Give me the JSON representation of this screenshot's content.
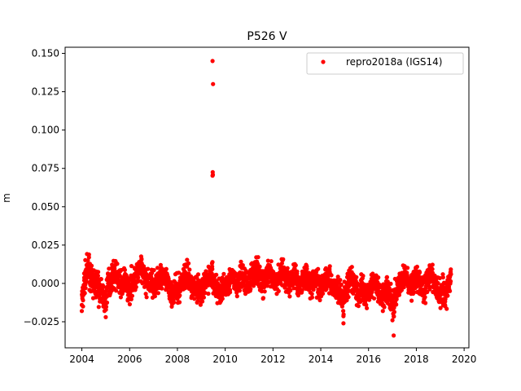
{
  "chart_data": {
    "type": "scatter",
    "title": "P526 V",
    "xlabel": "",
    "ylabel": "m",
    "xlim": [
      2003.3,
      2020.2
    ],
    "ylim": [
      -0.042,
      0.154
    ],
    "x_ticks": [
      2004,
      2006,
      2008,
      2010,
      2012,
      2014,
      2016,
      2018,
      2020
    ],
    "x_tick_labels": [
      "2004",
      "2006",
      "2008",
      "2010",
      "2012",
      "2014",
      "2016",
      "2018",
      "2020"
    ],
    "y_ticks": [
      -0.025,
      0.0,
      0.025,
      0.05,
      0.075,
      0.1,
      0.125,
      0.15
    ],
    "y_tick_labels": [
      "−0.025",
      "0.000",
      "0.025",
      "0.050",
      "0.075",
      "0.100",
      "0.125",
      "0.150"
    ],
    "grid": false,
    "legend_position": "top-right",
    "series": [
      {
        "name": "repro2018a (IGS14)",
        "color": "#ff0000",
        "marker": "circle",
        "points": [
          [
            2004.0,
            -0.018
          ],
          [
            2004.05,
            -0.015
          ],
          [
            2004.1,
            0.002
          ],
          [
            2004.15,
            0.008
          ],
          [
            2004.2,
            0.012
          ],
          [
            2004.25,
            0.015
          ],
          [
            2004.3,
            0.017
          ],
          [
            2004.35,
            0.01
          ],
          [
            2004.4,
            0.003
          ],
          [
            2004.45,
            -0.002
          ],
          [
            2004.5,
            0.005
          ],
          [
            2004.55,
            -0.005
          ],
          [
            2004.6,
            0.0
          ],
          [
            2004.65,
            0.004
          ],
          [
            2004.7,
            -0.008
          ],
          [
            2004.75,
            -0.01
          ],
          [
            2004.8,
            -0.004
          ],
          [
            2004.85,
            -0.012
          ],
          [
            2004.9,
            -0.015
          ],
          [
            2004.95,
            -0.018
          ],
          [
            2005.0,
            -0.022
          ],
          [
            2005.05,
            -0.008
          ],
          [
            2005.1,
            0.0
          ],
          [
            2005.2,
            0.004
          ],
          [
            2005.3,
            0.008
          ],
          [
            2005.4,
            0.012
          ],
          [
            2005.5,
            0.006
          ],
          [
            2005.6,
            0.0
          ],
          [
            2005.7,
            -0.002
          ],
          [
            2005.8,
            0.003
          ],
          [
            2005.9,
            -0.005
          ],
          [
            2006.0,
            -0.008
          ],
          [
            2006.1,
            0.002
          ],
          [
            2006.2,
            0.006
          ],
          [
            2006.3,
            0.01
          ],
          [
            2006.4,
            0.014
          ],
          [
            2006.5,
            0.016
          ],
          [
            2006.6,
            0.008
          ],
          [
            2006.7,
            0.003
          ],
          [
            2006.8,
            -0.002
          ],
          [
            2006.9,
            0.004
          ],
          [
            2007.0,
            0.0
          ],
          [
            2007.1,
            -0.004
          ],
          [
            2007.2,
            0.006
          ],
          [
            2007.3,
            0.012
          ],
          [
            2007.4,
            0.008
          ],
          [
            2007.5,
            0.002
          ],
          [
            2007.6,
            -0.003
          ],
          [
            2007.7,
            -0.008
          ],
          [
            2007.8,
            -0.012
          ],
          [
            2007.9,
            -0.006
          ],
          [
            2008.0,
            -0.01
          ],
          [
            2008.1,
            -0.004
          ],
          [
            2008.2,
            0.002
          ],
          [
            2008.3,
            0.008
          ],
          [
            2008.4,
            0.011
          ],
          [
            2008.5,
            0.004
          ],
          [
            2008.6,
            -0.002
          ],
          [
            2008.7,
            -0.006
          ],
          [
            2008.8,
            0.0
          ],
          [
            2008.9,
            -0.008
          ],
          [
            2009.0,
            -0.012
          ],
          [
            2009.1,
            -0.004
          ],
          [
            2009.2,
            0.003
          ],
          [
            2009.3,
            0.006
          ],
          [
            2009.4,
            0.01
          ],
          [
            2009.47,
            0.145
          ],
          [
            2009.49,
            0.13
          ],
          [
            2009.55,
            0.002
          ],
          [
            2009.6,
            -0.004
          ],
          [
            2009.7,
            -0.008
          ],
          [
            2009.8,
            -0.01
          ],
          [
            2009.9,
            -0.006
          ],
          [
            2010.0,
            -0.004
          ],
          [
            2010.1,
            0.0
          ],
          [
            2010.2,
            0.004
          ],
          [
            2010.3,
            0.008
          ],
          [
            2010.4,
            0.002
          ],
          [
            2010.5,
            -0.003
          ],
          [
            2010.6,
            0.006
          ],
          [
            2010.7,
            0.01
          ],
          [
            2010.8,
            0.004
          ],
          [
            2010.9,
            -0.002
          ],
          [
            2011.0,
            0.003
          ],
          [
            2011.1,
            0.008
          ],
          [
            2011.2,
            0.012
          ],
          [
            2011.3,
            0.017
          ],
          [
            2011.4,
            0.01
          ],
          [
            2011.5,
            0.004
          ],
          [
            2011.6,
            0.0
          ],
          [
            2011.7,
            0.006
          ],
          [
            2011.8,
            0.012
          ],
          [
            2011.9,
            0.008
          ],
          [
            2012.0,
            0.003
          ],
          [
            2012.1,
            0.0
          ],
          [
            2012.2,
            0.006
          ],
          [
            2012.3,
            0.012
          ],
          [
            2012.4,
            0.015
          ],
          [
            2012.5,
            0.008
          ],
          [
            2012.6,
            0.004
          ],
          [
            2012.7,
            -0.002
          ],
          [
            2012.8,
            0.006
          ],
          [
            2012.9,
            0.01
          ],
          [
            2013.0,
            0.003
          ],
          [
            2013.1,
            -0.004
          ],
          [
            2013.2,
            0.0
          ],
          [
            2013.3,
            0.006
          ],
          [
            2013.4,
            0.01
          ],
          [
            2013.5,
            0.004
          ],
          [
            2013.6,
            -0.002
          ],
          [
            2013.7,
            0.002
          ],
          [
            2013.8,
            0.006
          ],
          [
            2013.9,
            0.0
          ],
          [
            2014.0,
            -0.004
          ],
          [
            2014.1,
            0.002
          ],
          [
            2014.2,
            0.006
          ],
          [
            2014.3,
            0.008
          ],
          [
            2014.4,
            0.002
          ],
          [
            2014.5,
            -0.004
          ],
          [
            2014.6,
            -0.008
          ],
          [
            2014.7,
            -0.004
          ],
          [
            2014.8,
            -0.01
          ],
          [
            2014.9,
            -0.015
          ],
          [
            2014.95,
            -0.026
          ],
          [
            2015.0,
            -0.012
          ],
          [
            2015.1,
            -0.006
          ],
          [
            2015.2,
            0.0
          ],
          [
            2015.3,
            0.004
          ],
          [
            2015.4,
            -0.002
          ],
          [
            2015.5,
            -0.008
          ],
          [
            2015.6,
            -0.012
          ],
          [
            2015.7,
            -0.006
          ],
          [
            2015.8,
            -0.01
          ],
          [
            2015.9,
            -0.014
          ],
          [
            2016.0,
            -0.008
          ],
          [
            2016.1,
            -0.004
          ],
          [
            2016.2,
            0.0
          ],
          [
            2016.3,
            0.003
          ],
          [
            2016.4,
            -0.006
          ],
          [
            2016.5,
            -0.012
          ],
          [
            2016.6,
            -0.018
          ],
          [
            2016.7,
            -0.01
          ],
          [
            2016.8,
            -0.006
          ],
          [
            2016.9,
            -0.016
          ],
          [
            2017.0,
            -0.024
          ],
          [
            2017.05,
            -0.034
          ],
          [
            2017.1,
            -0.014
          ],
          [
            2017.2,
            -0.008
          ],
          [
            2017.3,
            -0.002
          ],
          [
            2017.4,
            0.004
          ],
          [
            2017.5,
            0.01
          ],
          [
            2017.6,
            0.006
          ],
          [
            2017.7,
            0.0
          ],
          [
            2017.8,
            -0.004
          ],
          [
            2017.9,
            0.004
          ],
          [
            2018.0,
            0.008
          ],
          [
            2018.1,
            0.002
          ],
          [
            2018.2,
            -0.004
          ],
          [
            2018.3,
            -0.008
          ],
          [
            2018.4,
            -0.002
          ],
          [
            2018.5,
            0.006
          ],
          [
            2018.6,
            0.01
          ],
          [
            2018.7,
            0.004
          ],
          [
            2018.8,
            -0.004
          ],
          [
            2018.9,
            -0.008
          ],
          [
            2019.0,
            -0.012
          ],
          [
            2019.1,
            -0.006
          ],
          [
            2019.2,
            -0.014
          ],
          [
            2019.3,
            -0.008
          ],
          [
            2019.35,
            -0.002
          ],
          [
            2019.4,
            0.004
          ],
          [
            2019.45,
            0.006
          ]
        ]
      }
    ]
  }
}
